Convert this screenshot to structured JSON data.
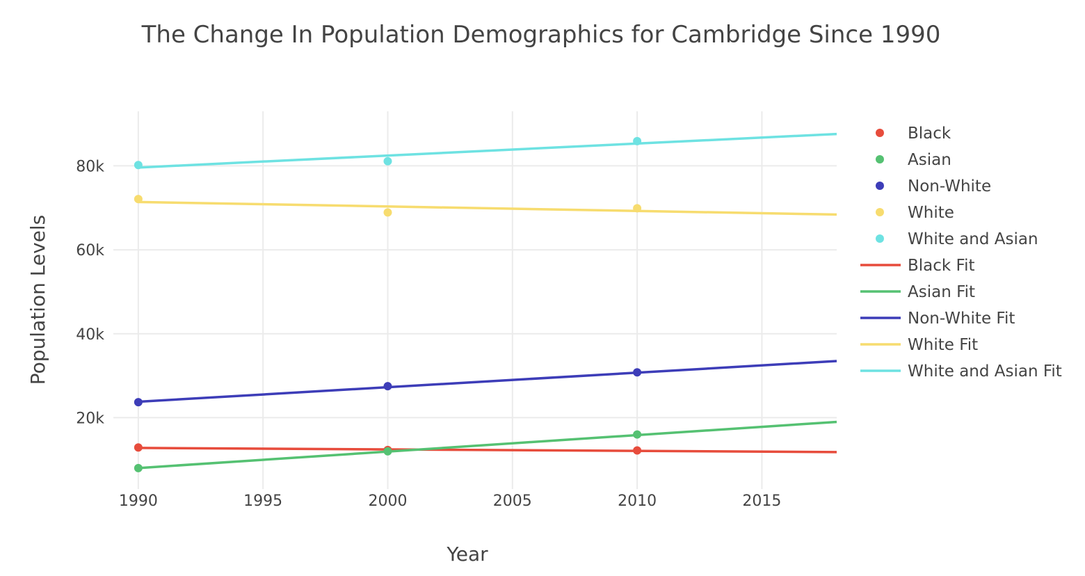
{
  "chart_data": {
    "type": "scatter",
    "title": "The Change In Population Demographics for Cambridge Since 1990",
    "xlabel": "Year",
    "ylabel": "Population Levels",
    "xlim": [
      1989,
      2018
    ],
    "ylim": [
      3000,
      93000
    ],
    "x_ticks": [
      1990,
      1995,
      2000,
      2005,
      2010,
      2015
    ],
    "x_tick_labels": [
      "1990",
      "1995",
      "2000",
      "2005",
      "2010",
      "2015"
    ],
    "y_ticks": [
      20000,
      40000,
      60000,
      80000
    ],
    "y_tick_labels": [
      "20k",
      "40k",
      "60k",
      "80k"
    ],
    "grid": true,
    "legend_position": "right",
    "scatter_series": [
      {
        "name": "Black",
        "color": "#e74c3c",
        "x": [
          1990,
          2000,
          2010
        ],
        "y": [
          12900,
          12300,
          12200
        ]
      },
      {
        "name": "Asian",
        "color": "#55c172",
        "x": [
          1990,
          2000,
          2010
        ],
        "y": [
          8000,
          12000,
          16000
        ]
      },
      {
        "name": "Non-White",
        "color": "#3d3db8",
        "x": [
          1990,
          2000,
          2010
        ],
        "y": [
          23700,
          27500,
          30800
        ]
      },
      {
        "name": "White",
        "color": "#f7dc6f",
        "x": [
          1990,
          2000,
          2010
        ],
        "y": [
          72100,
          68900,
          69900
        ]
      },
      {
        "name": "White and Asian",
        "color": "#6ee2e2",
        "x": [
          1990,
          2000,
          2010
        ],
        "y": [
          80200,
          81100,
          85900
        ]
      }
    ],
    "fit_series": [
      {
        "name": "Black Fit",
        "color": "#e74c3c",
        "x": [
          1990,
          2018
        ],
        "y": [
          12800,
          11800
        ]
      },
      {
        "name": "Asian Fit",
        "color": "#55c172",
        "x": [
          1990,
          2018
        ],
        "y": [
          8000,
          19000
        ]
      },
      {
        "name": "Non-White Fit",
        "color": "#3d3db8",
        "x": [
          1990,
          2018
        ],
        "y": [
          23800,
          33500
        ]
      },
      {
        "name": "White Fit",
        "color": "#f7dc6f",
        "x": [
          1990,
          2018
        ],
        "y": [
          71400,
          68400
        ]
      },
      {
        "name": "White and Asian Fit",
        "color": "#6ee2e2",
        "x": [
          1990,
          2018
        ],
        "y": [
          79600,
          87600
        ]
      }
    ]
  }
}
